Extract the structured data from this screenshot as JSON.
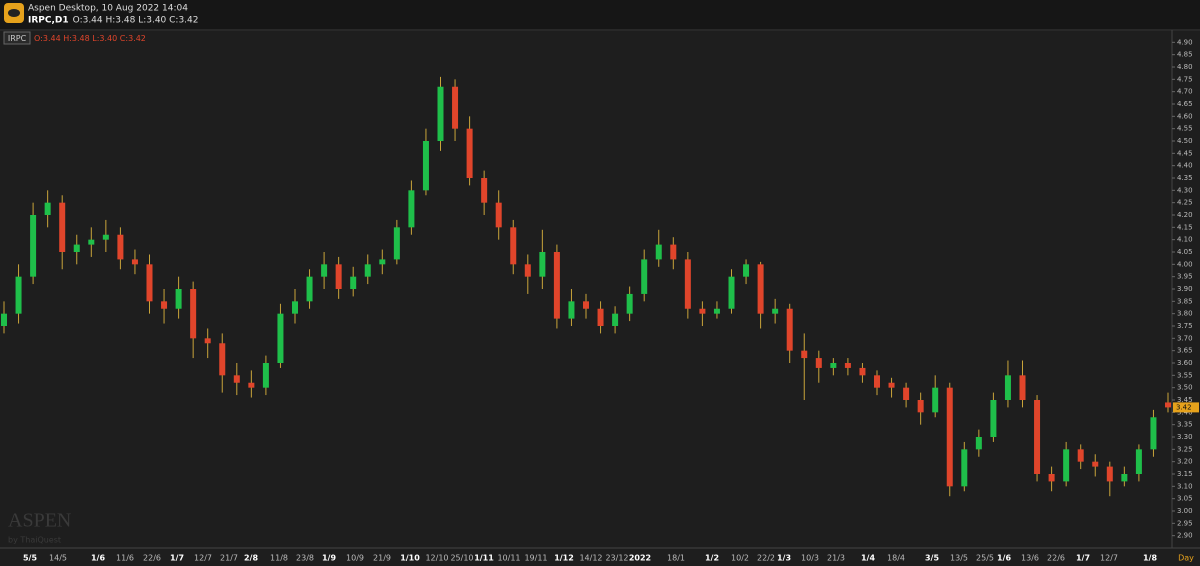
{
  "chart_data": {
    "type": "candlestick",
    "app_title": "Aspen Desktop, 10 Aug 2022 14:04",
    "symbol_line": "IRPC,D1",
    "ohlc_text": "O:3.44 H:3.48 L:3.40 C:3.42",
    "legend_symbol": "IRPC",
    "watermark": "ASPEN",
    "watermark_sub": "by ThaiQuest",
    "period_label": "Day",
    "up_color": "#1fbf4a",
    "down_color": "#e0452b",
    "wick_color": "#c9a43a",
    "ylim": [
      2.85,
      4.95
    ],
    "yticks": [
      {
        "value": 2.9,
        "label": "2.90"
      },
      2.95,
      {
        "value": 3.0,
        "label": "3.00"
      },
      3.05,
      {
        "value": 3.1,
        "label": "3.10"
      },
      3.15,
      {
        "value": 3.2,
        "label": "3.20"
      },
      3.25,
      {
        "value": 3.3,
        "label": "3.30"
      },
      3.35,
      {
        "value": 3.4,
        "label": "3.40"
      },
      3.45,
      {
        "value": 3.5,
        "label": "3.50"
      },
      3.55,
      {
        "value": 3.6,
        "label": "3.60"
      },
      3.65,
      {
        "value": 3.7,
        "label": "3.70"
      },
      3.75,
      {
        "value": 3.8,
        "label": "3.80"
      },
      3.85,
      {
        "value": 3.9,
        "label": "3.90"
      },
      3.95,
      {
        "value": 4.0,
        "label": "4.00"
      },
      4.05,
      {
        "value": 4.1,
        "label": "4.10"
      },
      4.15,
      {
        "value": 4.2,
        "label": "4.20"
      },
      4.25,
      {
        "value": 4.3,
        "label": "4.30"
      },
      4.35,
      {
        "value": 4.4,
        "label": "4.40"
      },
      4.45,
      {
        "value": 4.5,
        "label": "4.50"
      },
      4.55,
      {
        "value": 4.6,
        "label": "4.60"
      },
      4.65,
      {
        "value": 4.7,
        "label": "4.70"
      },
      4.75,
      {
        "value": 4.8,
        "label": "4.80"
      },
      4.85,
      {
        "value": 4.9,
        "label": "4.90"
      }
    ],
    "xtick_labels": [
      "5/5",
      "14/5",
      "1/6",
      "11/6",
      "22/6",
      "1/7",
      "12/7",
      "21/7",
      "2/8",
      "11/8",
      "23/8",
      "1/9",
      "10/9",
      "21/9",
      "1/10",
      "12/10",
      "25/10",
      "1/11",
      "10/11",
      "19/11",
      "1/12",
      "14/12",
      "23/12",
      "2022",
      "18/1",
      "1/2",
      "10/2",
      "22/2",
      "1/3",
      "10/3",
      "21/3",
      "1/4",
      "18/4",
      "3/5",
      "13/5",
      "25/5",
      "1/6",
      "13/6",
      "22/6",
      "1/7",
      "12/7",
      "1/8"
    ],
    "open": [
      3.75,
      3.8,
      3.95,
      4.2,
      4.25,
      4.05,
      4.08,
      4.1,
      4.12,
      4.02,
      4.0,
      3.85,
      3.82,
      3.9,
      3.7,
      3.68,
      3.55,
      3.52,
      3.5,
      3.6,
      3.8,
      3.85,
      3.95,
      4.0,
      3.9,
      3.95,
      4.0,
      4.02,
      4.15,
      4.3,
      4.5,
      4.72,
      4.55,
      4.35,
      4.25,
      4.15,
      4.0,
      3.95,
      4.05,
      3.78,
      3.85,
      3.82,
      3.75,
      3.8,
      3.88,
      4.02,
      4.08,
      4.02,
      3.82,
      3.8,
      3.82,
      3.95,
      4.0,
      3.8,
      3.82,
      3.65,
      3.62,
      3.58,
      3.6,
      3.58,
      3.55,
      3.52,
      3.5,
      3.45,
      3.4,
      3.5,
      3.1,
      3.25,
      3.3,
      3.45,
      3.55,
      3.45,
      3.15,
      3.12,
      3.25,
      3.2,
      3.18,
      3.12,
      3.15,
      3.25,
      3.44
    ],
    "high": [
      3.85,
      4.0,
      4.25,
      4.3,
      4.28,
      4.12,
      4.15,
      4.18,
      4.15,
      4.06,
      4.04,
      3.9,
      3.95,
      3.93,
      3.74,
      3.72,
      3.6,
      3.57,
      3.63,
      3.84,
      3.9,
      3.98,
      4.05,
      4.03,
      3.99,
      4.04,
      4.06,
      4.18,
      4.34,
      4.55,
      4.76,
      4.75,
      4.6,
      4.38,
      4.3,
      4.18,
      4.04,
      4.14,
      4.08,
      3.9,
      3.88,
      3.85,
      3.83,
      3.91,
      4.06,
      4.14,
      4.11,
      4.05,
      3.85,
      3.85,
      3.98,
      4.02,
      4.01,
      3.86,
      3.84,
      3.72,
      3.65,
      3.62,
      3.62,
      3.6,
      3.57,
      3.54,
      3.52,
      3.48,
      3.55,
      3.52,
      3.28,
      3.33,
      3.48,
      3.61,
      3.61,
      3.47,
      3.18,
      3.28,
      3.27,
      3.23,
      3.2,
      3.18,
      3.27,
      3.41,
      3.48
    ],
    "low": [
      3.72,
      3.76,
      3.92,
      4.15,
      3.98,
      4.0,
      4.03,
      4.05,
      3.98,
      3.96,
      3.8,
      3.76,
      3.78,
      3.62,
      3.62,
      3.48,
      3.47,
      3.46,
      3.47,
      3.58,
      3.76,
      3.82,
      3.9,
      3.86,
      3.87,
      3.92,
      3.96,
      4.0,
      4.12,
      4.28,
      4.46,
      4.5,
      4.32,
      4.2,
      4.1,
      3.96,
      3.88,
      3.9,
      3.74,
      3.75,
      3.78,
      3.72,
      3.72,
      3.77,
      3.85,
      3.99,
      3.98,
      3.78,
      3.75,
      3.78,
      3.8,
      3.92,
      3.74,
      3.76,
      3.6,
      3.45,
      3.52,
      3.55,
      3.55,
      3.52,
      3.47,
      3.46,
      3.42,
      3.35,
      3.38,
      3.06,
      3.08,
      3.22,
      3.28,
      3.42,
      3.42,
      3.12,
      3.08,
      3.1,
      3.17,
      3.14,
      3.06,
      3.1,
      3.12,
      3.22,
      3.4
    ],
    "close": [
      3.8,
      3.95,
      4.2,
      4.25,
      4.05,
      4.08,
      4.1,
      4.12,
      4.02,
      4.0,
      3.85,
      3.82,
      3.9,
      3.7,
      3.68,
      3.55,
      3.52,
      3.5,
      3.6,
      3.8,
      3.85,
      3.95,
      4.0,
      3.9,
      3.95,
      4.0,
      4.02,
      4.15,
      4.3,
      4.5,
      4.72,
      4.55,
      4.35,
      4.25,
      4.15,
      4.0,
      3.95,
      4.05,
      3.78,
      3.85,
      3.82,
      3.75,
      3.8,
      3.88,
      4.02,
      4.08,
      4.02,
      3.82,
      3.8,
      3.82,
      3.95,
      4.0,
      3.8,
      3.82,
      3.65,
      3.62,
      3.58,
      3.6,
      3.58,
      3.55,
      3.5,
      3.5,
      3.45,
      3.4,
      3.5,
      3.1,
      3.25,
      3.3,
      3.45,
      3.55,
      3.45,
      3.15,
      3.12,
      3.25,
      3.2,
      3.18,
      3.12,
      3.15,
      3.25,
      3.38,
      3.42
    ]
  }
}
